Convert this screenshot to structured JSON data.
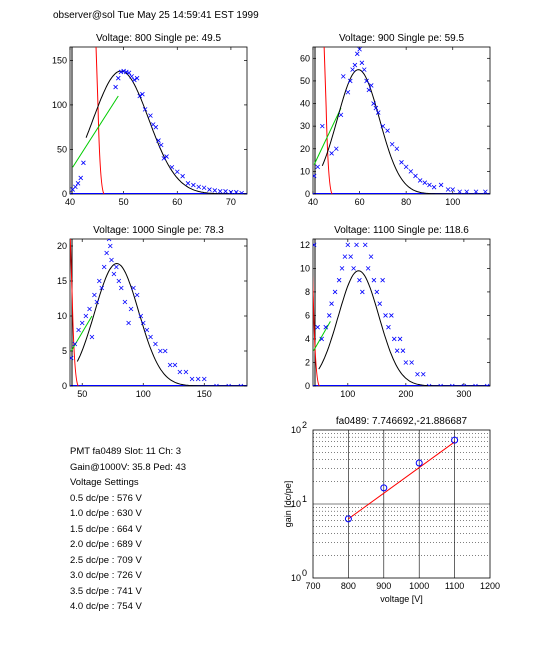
{
  "header": {
    "text": "observer@sol  Tue May 25 14:59:41 EST 1999"
  },
  "info": {
    "lines": [
      "PMT fa0489 Slot: 11 Ch: 3",
      "Gain@1000V: 35.8 Ped: 43",
      "Voltage Settings",
      "0.5 dc/pe : 576 V",
      "1.0 dc/pe : 630 V",
      "1.5 dc/pe : 664 V",
      "2.0 dc/pe : 689 V",
      "2.5 dc/pe : 709 V",
      "3.0 dc/pe : 726 V",
      "3.5 dc/pe : 741 V",
      "4.0 dc/pe : 754 V"
    ]
  },
  "colors": {
    "data": "#0000ff",
    "fit": "#000000",
    "low_fit": "#00cc00",
    "pedestal": "#ff0000",
    "gain_line": "#ff0000"
  },
  "chart_data": [
    {
      "type": "scatter",
      "title": "Voltage: 800 Single pe: 49.5",
      "xlim": [
        40,
        73
      ],
      "ylim": [
        0,
        165
      ],
      "xticks": [
        40,
        50,
        60,
        70
      ],
      "yticks": [
        0,
        50,
        100,
        150
      ],
      "pedestal_x": 45.6,
      "low_fit": {
        "x": [
          40.5,
          49
        ],
        "y": [
          30,
          110
        ]
      },
      "fit": {
        "mean": 49.5,
        "sigma": 5.2,
        "amplitude": 138,
        "x_start": 43
      },
      "series": [
        {
          "x": [
            40.5,
            41,
            41.5,
            42,
            42.5,
            48.5,
            49,
            49.5,
            50,
            50.5,
            51,
            51.5,
            52,
            52.5,
            53,
            53.5,
            54,
            55,
            55.5,
            56,
            56.5,
            57,
            57.5,
            58,
            59,
            60,
            61,
            62,
            63,
            64,
            65,
            66,
            67,
            68,
            69,
            70,
            71,
            72
          ],
          "y": [
            5,
            8,
            12,
            18,
            35,
            120,
            130,
            137,
            138,
            137,
            136,
            132,
            128,
            130,
            110,
            112,
            95,
            88,
            78,
            75,
            60,
            55,
            40,
            42,
            30,
            25,
            20,
            12,
            10,
            8,
            7,
            5,
            4,
            3,
            3,
            2,
            2,
            1
          ]
        }
      ]
    },
    {
      "type": "scatter",
      "title": "Voltage: 900 Single pe: 59.5",
      "xlim": [
        40,
        116
      ],
      "ylim": [
        0,
        65
      ],
      "xticks": [
        40,
        60,
        80,
        100
      ],
      "yticks": [
        0,
        10,
        20,
        30,
        40,
        50,
        60
      ],
      "pedestal_x": 46.5,
      "low_fit": {
        "x": [
          40.5,
          52
        ],
        "y": [
          13,
          38
        ]
      },
      "fit": {
        "mean": 59.5,
        "sigma": 9,
        "amplitude": 55,
        "x_start": 44
      },
      "series": [
        {
          "x": [
            40.5,
            42,
            44,
            48,
            50,
            52,
            53,
            55,
            56,
            57,
            58,
            59,
            60,
            61,
            62,
            63,
            64,
            65,
            66,
            67,
            68,
            70,
            72,
            74,
            76,
            78,
            80,
            82,
            84,
            86,
            88,
            90,
            92,
            95,
            98,
            100,
            103,
            106,
            110,
            114
          ],
          "y": [
            8,
            12,
            30,
            18,
            20,
            35,
            52,
            45,
            50,
            55,
            57,
            62,
            64,
            58,
            55,
            50,
            46,
            48,
            40,
            38,
            36,
            30,
            28,
            22,
            20,
            14,
            12,
            10,
            8,
            6,
            5,
            4,
            3,
            4,
            2,
            2,
            1,
            1,
            1,
            1
          ]
        }
      ]
    },
    {
      "type": "scatter",
      "title": "Voltage: 1000 Single pe: 78.3",
      "xlim": [
        40,
        185
      ],
      "ylim": [
        0,
        21
      ],
      "xticks": [
        50,
        100,
        150
      ],
      "yticks": [
        0,
        5,
        10,
        15,
        20
      ],
      "pedestal_x": 43.5,
      "low_fit": {
        "x": [
          41,
          58
        ],
        "y": [
          5,
          10
        ]
      },
      "fit": {
        "mean": 78.3,
        "sigma": 18,
        "amplitude": 17.5,
        "x_start": 46
      },
      "series": [
        {
          "x": [
            41,
            44,
            47,
            50,
            53,
            56,
            58,
            60,
            62,
            64,
            66,
            68,
            70,
            72,
            73,
            74,
            76,
            78,
            80,
            82,
            85,
            88,
            90,
            92,
            95,
            98,
            100,
            103,
            106,
            110,
            114,
            118,
            122,
            126,
            130,
            135,
            140,
            145,
            150,
            160,
            170,
            180
          ],
          "y": [
            4,
            6,
            8,
            9,
            10,
            11,
            7,
            13,
            12,
            15,
            14,
            17,
            19,
            21,
            20,
            18,
            16,
            17,
            15,
            14,
            12,
            9,
            11,
            14,
            13,
            10,
            9,
            8,
            7,
            6,
            5,
            5,
            3,
            3,
            2,
            2,
            1,
            1,
            1,
            0,
            0,
            0
          ]
        }
      ]
    },
    {
      "type": "scatter",
      "title": "Voltage: 1100 Single pe: 118.6",
      "xlim": [
        40,
        345
      ],
      "ylim": [
        0,
        12.5
      ],
      "xticks": [
        100,
        200,
        300
      ],
      "yticks": [
        0,
        2,
        4,
        6,
        8,
        10,
        12
      ],
      "pedestal_x": 44,
      "low_fit": {
        "x": [
          41,
          70
        ],
        "y": [
          3,
          5.5
        ]
      },
      "fit": {
        "mean": 118.6,
        "sigma": 35,
        "amplitude": 9.8,
        "x_start": 50
      },
      "series": [
        {
          "x": [
            42,
            48,
            55,
            62,
            68,
            72,
            78,
            85,
            90,
            95,
            100,
            105,
            110,
            115,
            120,
            125,
            130,
            135,
            140,
            145,
            150,
            155,
            160,
            165,
            170,
            175,
            180,
            185,
            190,
            195,
            200,
            210,
            220,
            230,
            240,
            260,
            280,
            300,
            320,
            340
          ],
          "y": [
            12,
            5,
            4,
            5,
            6,
            7,
            8,
            9,
            10,
            11,
            12,
            11,
            10,
            12,
            9,
            8,
            12,
            10,
            11,
            9,
            8,
            7,
            9,
            6,
            5,
            6,
            4,
            3,
            4,
            3,
            2,
            2,
            1,
            1,
            0,
            0,
            0,
            0,
            0,
            0
          ]
        }
      ]
    },
    {
      "type": "scatter",
      "title": "fa0489: 7.746692,-21.886687",
      "xlabel": "voltage [V]",
      "ylabel": "gain [dc/pe]",
      "xlim": [
        700,
        1200
      ],
      "ylim": [
        1,
        100
      ],
      "yscale": "log",
      "grid": true,
      "xticks": [
        700,
        800,
        900,
        1000,
        1100,
        1200
      ],
      "ytick_labels": [
        "10^0",
        "10^1",
        "10^2"
      ],
      "fit_line": {
        "x": [
          800,
          1100
        ],
        "y": [
          6.3,
          69
        ]
      },
      "series": [
        {
          "x": [
            800,
            900,
            1000,
            1100
          ],
          "y": [
            6.3,
            16.5,
            35.8,
            73
          ]
        }
      ]
    }
  ]
}
